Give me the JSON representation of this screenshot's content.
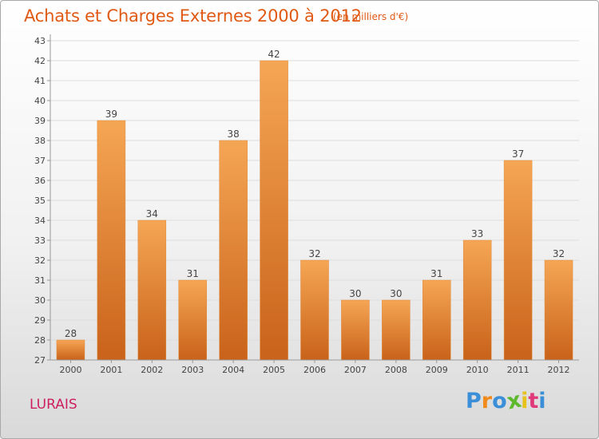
{
  "header": {
    "title": "Achats et Charges Externes 2000 à 2012",
    "subtitle": "(en milliers d'€)"
  },
  "footer": {
    "commune": "LURAIS",
    "brand_letters": [
      "P",
      "r",
      "o",
      "x",
      "i",
      "t",
      "i"
    ],
    "brand_colors": [
      "#3a8fd8",
      "#f08a1c",
      "#3a8fd8",
      "#5cb82c",
      "#e8c21a",
      "#e03a7a",
      "#3a8fd8"
    ]
  },
  "colors": {
    "bar_top": "#f5a654",
    "bar_bottom": "#c9621a",
    "grid": "#dddddd",
    "axis": "#999999",
    "title": "#e05a14",
    "commune": "#cc2060"
  },
  "chart_data": {
    "type": "bar",
    "categories": [
      "2000",
      "2001",
      "2002",
      "2003",
      "2004",
      "2005",
      "2006",
      "2007",
      "2008",
      "2009",
      "2010",
      "2011",
      "2012"
    ],
    "values": [
      28,
      39,
      34,
      31,
      38,
      42,
      32,
      30,
      30,
      31,
      33,
      37,
      32
    ],
    "ylim": [
      27,
      43
    ],
    "ytick_step": 1,
    "grid": true,
    "show_data_labels": true
  }
}
